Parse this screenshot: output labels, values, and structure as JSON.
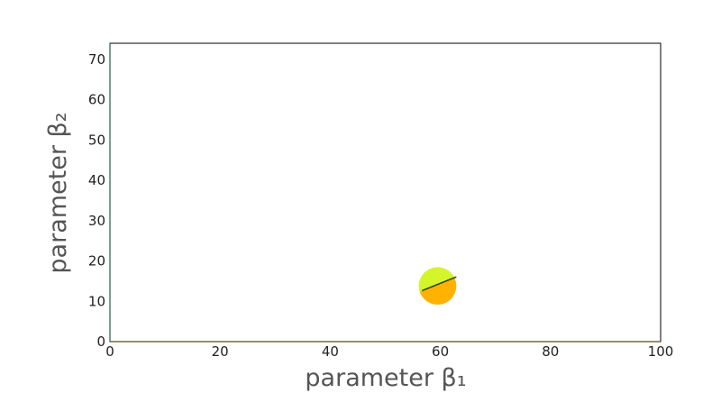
{
  "chart_data": {
    "type": "scatter",
    "title": "",
    "xlabel": "parameter β₁",
    "ylabel": "parameter β₂",
    "xlim": [
      0,
      100
    ],
    "ylim": [
      0,
      74
    ],
    "xticks": [
      0,
      20,
      40,
      60,
      80,
      100
    ],
    "yticks": [
      0,
      10,
      20,
      30,
      40,
      50,
      60,
      70
    ],
    "grid": false,
    "legend": "none",
    "points": [
      {
        "x": 59.5,
        "y": 13.8,
        "radius": 3.4,
        "upper_color": "#d4f52a",
        "lower_color": "#ffb300",
        "divider_from": [
          56.8,
          12.7
        ],
        "divider_to": [
          62.8,
          16.0
        ]
      }
    ]
  }
}
